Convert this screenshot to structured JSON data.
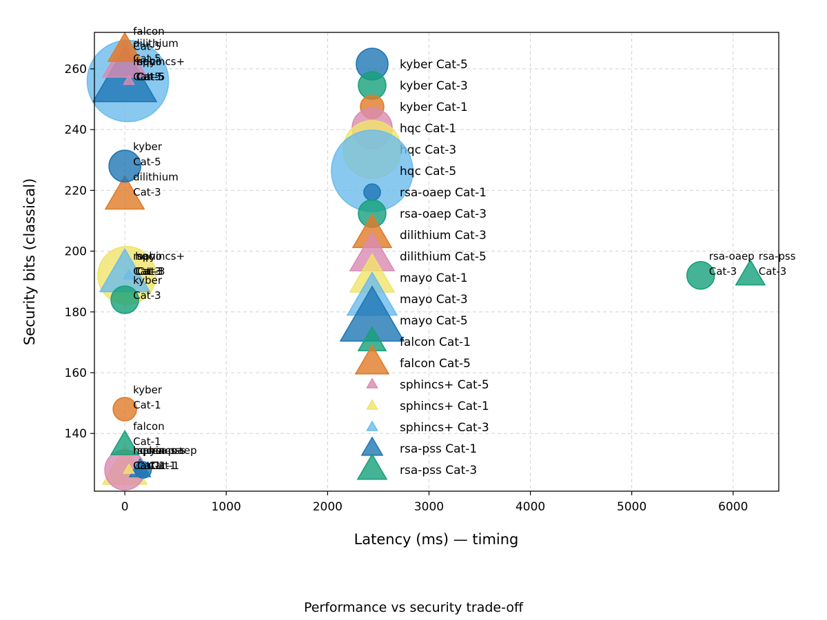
{
  "chart_data": {
    "type": "scatter",
    "title": "",
    "caption": "Performance vs security trade-off",
    "xlabel": "Latency (ms) — timing",
    "ylabel": "Security bits (classical)",
    "xlim": [
      -300,
      6450
    ],
    "ylim": [
      121,
      272
    ],
    "x_ticks": [
      0,
      1000,
      2000,
      3000,
      4000,
      5000,
      6000
    ],
    "y_ticks": [
      140,
      160,
      180,
      200,
      220,
      240,
      260
    ],
    "grid": true,
    "legend_placement": "center",
    "series": [
      {
        "name": "kyber Cat-5",
        "marker": "circle",
        "color": "#1f77b4",
        "size": 46,
        "x": 0,
        "y": 228,
        "label": [
          "kyber",
          "Cat-5"
        ]
      },
      {
        "name": "kyber Cat-3",
        "marker": "circle",
        "color": "#17a07a",
        "size": 40,
        "x": 0,
        "y": 184,
        "label": [
          "kyber",
          "Cat-3"
        ]
      },
      {
        "name": "kyber Cat-1",
        "marker": "circle",
        "color": "#e07b28",
        "size": 34,
        "x": 0,
        "y": 148,
        "label": [
          "kyber",
          "Cat-1"
        ]
      },
      {
        "name": "hqc Cat-1",
        "marker": "circle",
        "color": "#d98bb1",
        "size": 58,
        "x": 0,
        "y": 128,
        "label": [
          "hqc",
          "Cat-1"
        ]
      },
      {
        "name": "hqc Cat-3",
        "marker": "circle",
        "color": "#f0e36a",
        "size": 84,
        "x": 20,
        "y": 192,
        "label": [
          "hqc",
          "Cat-3"
        ]
      },
      {
        "name": "hqc Cat-5",
        "marker": "circle",
        "color": "#6cbcec",
        "size": 118,
        "x": 30,
        "y": 256,
        "label": [
          "hqc",
          "Cat-5"
        ]
      },
      {
        "name": "rsa-oaep Cat-1",
        "marker": "circle",
        "color": "#1f77b4",
        "size": 24,
        "x": 180,
        "y": 128,
        "label": [
          "rsa-oaep",
          "Cat-1"
        ]
      },
      {
        "name": "rsa-oaep Cat-3",
        "marker": "circle",
        "color": "#17a07a",
        "size": 40,
        "x": 5680,
        "y": 192,
        "label": [
          "rsa-oaep",
          "Cat-3"
        ]
      },
      {
        "name": "dilithium Cat-3",
        "marker": "triangle",
        "color": "#e07b28",
        "size": 56,
        "x": 0,
        "y": 218,
        "label": [
          "dilithium",
          "Cat-3"
        ]
      },
      {
        "name": "dilithium Cat-5",
        "marker": "triangle",
        "color": "#d98bb1",
        "size": 64,
        "x": 0,
        "y": 262,
        "label": [
          "dilithium",
          "Cat-5"
        ]
      },
      {
        "name": "mayo Cat-1",
        "marker": "triangle",
        "color": "#f0e36a",
        "size": 64,
        "x": 0,
        "y": 128,
        "label": [
          "mayo",
          "Cat-1"
        ]
      },
      {
        "name": "mayo Cat-3",
        "marker": "triangle",
        "color": "#6cbcec",
        "size": 72,
        "x": 0,
        "y": 192,
        "label": [
          "mayo",
          "Cat-3"
        ]
      },
      {
        "name": "mayo Cat-5",
        "marker": "triangle",
        "color": "#1f77b4",
        "size": 92,
        "x": 0,
        "y": 256,
        "label": [
          "mayo",
          "Cat-5"
        ]
      },
      {
        "name": "falcon Cat-1",
        "marker": "triangle",
        "color": "#17a07a",
        "size": 40,
        "x": 0,
        "y": 136,
        "label": [
          "falcon",
          "Cat-1"
        ]
      },
      {
        "name": "falcon Cat-5",
        "marker": "triangle",
        "color": "#e07b28",
        "size": 48,
        "x": 0,
        "y": 266,
        "label": [
          "falcon",
          "Cat-5"
        ]
      },
      {
        "name": "sphincs+ Cat-5",
        "marker": "triangle",
        "color": "#d98bb1",
        "size": 15,
        "x": 40,
        "y": 256,
        "label": [
          "sphincs+",
          "Cat-5"
        ]
      },
      {
        "name": "sphincs+ Cat-1",
        "marker": "triangle",
        "color": "#f0e36a",
        "size": 15,
        "x": 40,
        "y": 128,
        "label": [
          "sphincs+",
          "Cat-1"
        ]
      },
      {
        "name": "sphincs+ Cat-3",
        "marker": "triangle",
        "color": "#6cbcec",
        "size": 15,
        "x": 40,
        "y": 192,
        "label": [
          "sphincs+",
          "Cat-3"
        ]
      },
      {
        "name": "rsa-pss Cat-1",
        "marker": "triangle",
        "color": "#1f77b4",
        "size": 30,
        "x": 150,
        "y": 128,
        "label": [
          "rsa-pss",
          "Cat-1"
        ]
      },
      {
        "name": "rsa-pss Cat-3",
        "marker": "triangle",
        "color": "#17a07a",
        "size": 42,
        "x": 6170,
        "y": 192,
        "label": [
          "rsa-pss",
          "Cat-3"
        ]
      }
    ]
  }
}
